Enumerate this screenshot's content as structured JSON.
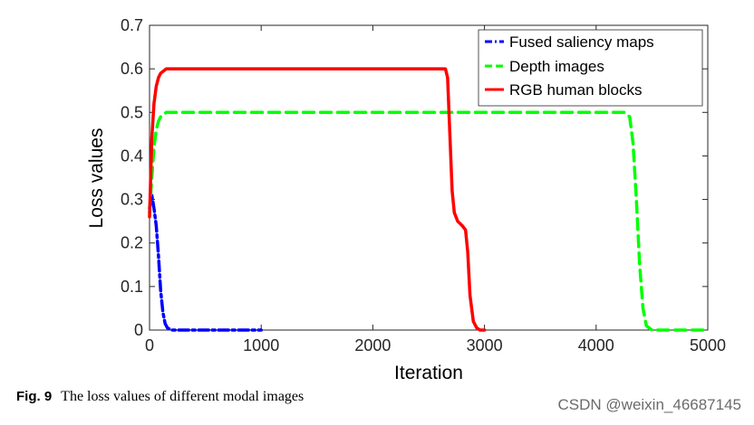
{
  "chart_data": {
    "type": "line",
    "title": "",
    "xlabel": "Iteration",
    "ylabel": "Loss values",
    "xlim": [
      0,
      5000
    ],
    "ylim": [
      0,
      0.7
    ],
    "xticks": [
      0,
      1000,
      2000,
      3000,
      4000,
      5000
    ],
    "yticks": [
      0,
      0.1,
      0.2,
      0.3,
      0.4,
      0.5,
      0.6,
      0.7
    ],
    "xtick_labels": [
      "0",
      "1000",
      "2000",
      "3000",
      "4000",
      "5000"
    ],
    "ytick_labels": [
      "0",
      "0.1",
      "0.2",
      "0.3",
      "0.4",
      "0.5",
      "0.6",
      "0.7"
    ],
    "grid": false,
    "legend_position": "top-right",
    "series": [
      {
        "name": "Fused saliency maps",
        "color": "#0000ff",
        "style": "dashdot",
        "x": [
          0,
          20,
          40,
          60,
          80,
          100,
          120,
          140,
          160,
          200,
          300,
          500,
          700,
          1000
        ],
        "y": [
          0.28,
          0.31,
          0.28,
          0.24,
          0.17,
          0.09,
          0.04,
          0.015,
          0.005,
          0.0,
          0.0,
          0.0,
          0.0,
          0.0
        ]
      },
      {
        "name": "Depth images",
        "color": "#00ff00",
        "style": "dashed",
        "x": [
          0,
          20,
          40,
          60,
          80,
          100,
          150,
          300,
          1000,
          2000,
          3000,
          4000,
          4250,
          4300,
          4330,
          4360,
          4390,
          4420,
          4450,
          4500,
          4700,
          5000
        ],
        "y": [
          0.27,
          0.35,
          0.42,
          0.46,
          0.48,
          0.49,
          0.5,
          0.5,
          0.5,
          0.5,
          0.5,
          0.5,
          0.5,
          0.49,
          0.43,
          0.3,
          0.15,
          0.05,
          0.01,
          0.0,
          0.0,
          0.0
        ]
      },
      {
        "name": "RGB human blocks",
        "color": "#ff0000",
        "style": "solid",
        "x": [
          0,
          20,
          40,
          60,
          80,
          100,
          150,
          300,
          1000,
          2000,
          2500,
          2650,
          2670,
          2690,
          2710,
          2730,
          2760,
          2800,
          2830,
          2850,
          2870,
          2900,
          2930,
          2960,
          3000
        ],
        "y": [
          0.26,
          0.44,
          0.52,
          0.56,
          0.58,
          0.59,
          0.6,
          0.6,
          0.6,
          0.6,
          0.6,
          0.6,
          0.58,
          0.45,
          0.32,
          0.27,
          0.25,
          0.24,
          0.23,
          0.18,
          0.08,
          0.02,
          0.005,
          0.0,
          0.0
        ]
      }
    ]
  },
  "caption": {
    "label": "Fig. 9",
    "text": "The loss values of different modal images"
  },
  "watermark": "CSDN @weixin_46687145"
}
